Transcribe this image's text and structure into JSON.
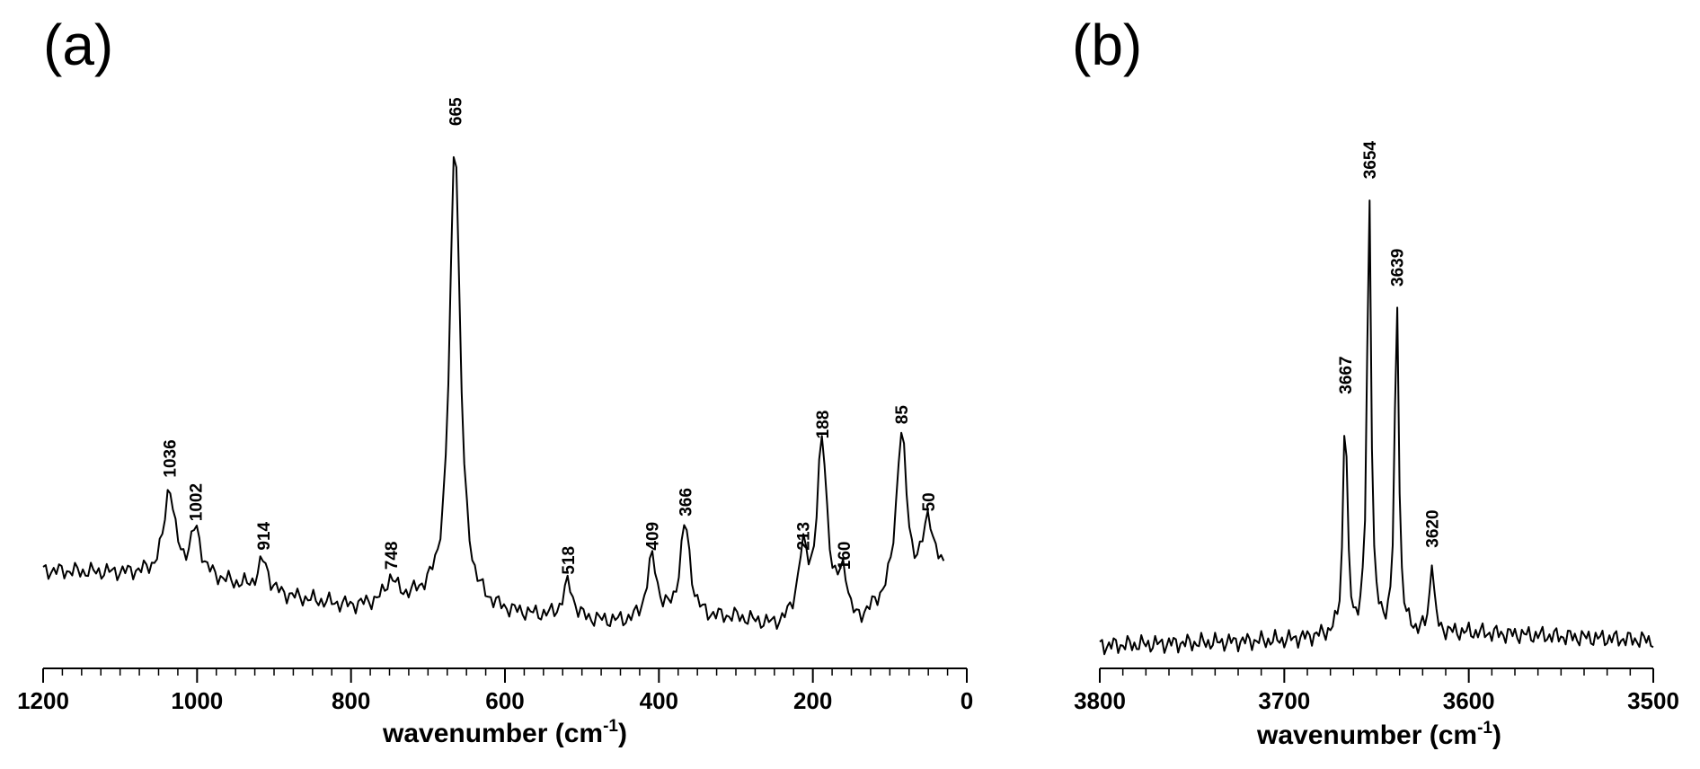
{
  "chart_data": [
    {
      "type": "line",
      "panel_label": "(a)",
      "xlabel": "wavenumber (cm",
      "xlabel_superscript": "-1",
      "xlabel_suffix": ")",
      "xlim": [
        1200,
        0
      ],
      "x_ticks": [
        1200,
        1000,
        800,
        600,
        400,
        200,
        0
      ],
      "x_minor_step": 25,
      "ylim": [
        0,
        1
      ],
      "y_axis_shown": false,
      "grid": false,
      "peaks": [
        {
          "x": 1036,
          "y": 0.26,
          "label": "1036"
        },
        {
          "x": 1002,
          "y": 0.17,
          "label": "1002"
        },
        {
          "x": 914,
          "y": 0.11,
          "label": "914"
        },
        {
          "x": 748,
          "y": 0.07,
          "label": "748"
        },
        {
          "x": 665,
          "y": 0.985,
          "label": "665"
        },
        {
          "x": 518,
          "y": 0.06,
          "label": "518"
        },
        {
          "x": 409,
          "y": 0.11,
          "label": "409"
        },
        {
          "x": 366,
          "y": 0.18,
          "label": "366"
        },
        {
          "x": 213,
          "y": 0.11,
          "label": "213"
        },
        {
          "x": 188,
          "y": 0.34,
          "label": "188"
        },
        {
          "x": 160,
          "y": 0.07,
          "label": "160"
        },
        {
          "x": 85,
          "y": 0.37,
          "label": "85"
        },
        {
          "x": 50,
          "y": 0.19,
          "label": "50"
        }
      ],
      "baseline": [
        [
          1200,
          0.09
        ],
        [
          1000,
          0.08
        ],
        [
          900,
          0.04
        ],
        [
          800,
          0.015
        ],
        [
          700,
          0.03
        ],
        [
          600,
          0.0
        ],
        [
          500,
          -0.015
        ],
        [
          440,
          -0.02
        ],
        [
          300,
          -0.01
        ],
        [
          250,
          -0.03
        ],
        [
          180,
          -0.02
        ],
        [
          150,
          -0.05
        ],
        [
          120,
          0.0
        ],
        [
          100,
          0.02
        ],
        [
          30,
          0.08
        ]
      ]
    },
    {
      "type": "line",
      "panel_label": "(b)",
      "xlabel": "wavenumber (cm",
      "xlabel_superscript": "-1",
      "xlabel_suffix": ")",
      "xlim": [
        3800,
        3500
      ],
      "x_ticks": [
        3800,
        3700,
        3600,
        3500
      ],
      "x_minor_step": 12.5,
      "ylim": [
        0,
        1
      ],
      "y_axis_shown": false,
      "grid": false,
      "peaks": [
        {
          "x": 3667,
          "y": 0.49,
          "label": "3667"
        },
        {
          "x": 3654,
          "y": 0.91,
          "label": "3654"
        },
        {
          "x": 3639,
          "y": 0.7,
          "label": "3639"
        },
        {
          "x": 3620,
          "y": 0.19,
          "label": "3620"
        }
      ],
      "baseline": [
        [
          3800,
          0.02
        ],
        [
          3700,
          0.03
        ],
        [
          3670,
          0.04
        ],
        [
          3600,
          0.045
        ],
        [
          3500,
          0.03
        ]
      ]
    }
  ]
}
